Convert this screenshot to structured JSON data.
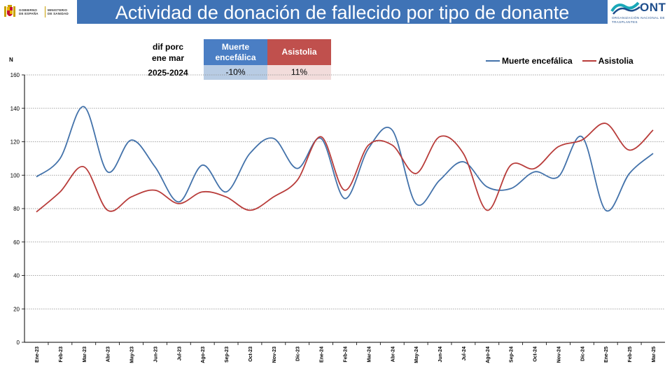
{
  "header": {
    "title": "Actividad de donación de fallecido por tipo de donante",
    "gov_logo_text": "GOBIERNO DE ESPAÑA",
    "ministry_text": "MINISTERIO DE SANIDAD",
    "ont_logo_word": "ONT",
    "ont_logo_subtitle": "ORGANIZACIÓN NACIONAL DE TRASPLANTES"
  },
  "summary": {
    "label_line1": "dif porc",
    "label_line2": "ene mar",
    "period": "2025-2024",
    "columns": [
      {
        "name": "Muerte encefálica",
        "value": "-10%"
      },
      {
        "name": "Asistolia",
        "value": "11%"
      }
    ]
  },
  "colors": {
    "title_bg": "#3f73b6",
    "muerte": "#4372aa",
    "asistolia": "#b83c3a",
    "header_me": "#4a7ec4",
    "header_as": "#c0504d",
    "cell_me": "#b8cce4",
    "cell_as": "#f2dcdb"
  },
  "chart_data": {
    "type": "line",
    "ylabel": "N",
    "ylim": [
      0,
      160
    ],
    "yticks": [
      0,
      20,
      40,
      60,
      80,
      100,
      120,
      140,
      160
    ],
    "grid": true,
    "legend_position": "top-right",
    "categories": [
      "Ene-23",
      "Feb-23",
      "Mar-23",
      "Abr-23",
      "May-23",
      "Jun-23",
      "Jul-23",
      "Ago-23",
      "Sep-23",
      "Oct-23",
      "Nov-23",
      "Dic-23",
      "Ene-24",
      "Feb-24",
      "Mar-24",
      "Abr-24",
      "May-24",
      "Jun-24",
      "Jul-24",
      "Ago-24",
      "Sep-24",
      "Oct-24",
      "Nov-24",
      "Dic-24",
      "Ene-25",
      "Feb-25",
      "Mar-25"
    ],
    "series": [
      {
        "name": "Muerte encefálica",
        "color": "#4372aa",
        "values": [
          99,
          110,
          141,
          102,
          121,
          105,
          84,
          106,
          90,
          113,
          122,
          104,
          122,
          86,
          116,
          127,
          83,
          97,
          108,
          93,
          92,
          102,
          99,
          123,
          79,
          101,
          113
        ]
      },
      {
        "name": "Asistolia",
        "color": "#b83c3a",
        "values": [
          78,
          90,
          105,
          79,
          87,
          91,
          83,
          90,
          87,
          79,
          87,
          97,
          123,
          91,
          118,
          118,
          101,
          123,
          113,
          79,
          106,
          104,
          117,
          121,
          131,
          115,
          127
        ]
      }
    ]
  }
}
